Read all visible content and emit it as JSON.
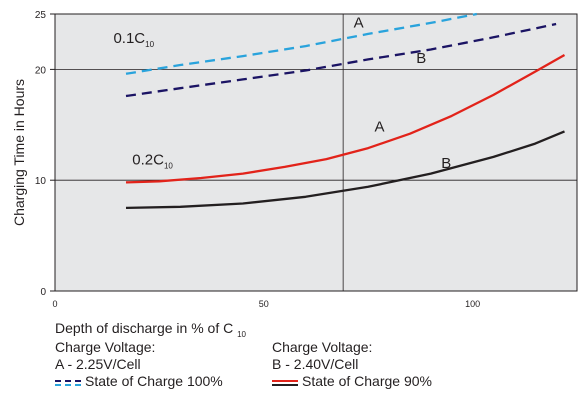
{
  "chart_data": {
    "type": "line",
    "title": "",
    "ylabel": "Charging Time in Hours",
    "xlabel": "Depth of discharge in % of C",
    "xlabel_sub": "10",
    "xlim": [
      0,
      125
    ],
    "ylim": [
      0,
      25
    ],
    "x_ticks": [
      0,
      50,
      100
    ],
    "y_ticks": [
      0,
      10,
      20,
      25
    ],
    "reference_lines": {
      "x": 69,
      "y": [
        10,
        20
      ]
    },
    "grid": false,
    "series": [
      {
        "group": "0.1C10",
        "curve": "A",
        "style": "dashed",
        "color": "#29a3dc",
        "x": [
          17,
          30,
          45,
          60,
          75,
          90,
          101
        ],
        "y": [
          19.6,
          20.4,
          21.2,
          22.1,
          23.2,
          24.2,
          25.0
        ]
      },
      {
        "group": "0.1C10",
        "curve": "B",
        "style": "dashed",
        "color": "#1b1464",
        "x": [
          17,
          30,
          45,
          60,
          75,
          90,
          105,
          120
        ],
        "y": [
          17.6,
          18.3,
          19.1,
          19.9,
          20.9,
          21.8,
          22.9,
          24.1
        ]
      },
      {
        "group": "0.2C10",
        "curve": "A",
        "style": "solid",
        "color": "#e2231a",
        "x": [
          17,
          25,
          35,
          45,
          55,
          65,
          75,
          85,
          95,
          105,
          115,
          122
        ],
        "y": [
          9.8,
          9.9,
          10.2,
          10.6,
          11.2,
          11.9,
          12.9,
          14.2,
          15.8,
          17.7,
          19.8,
          21.3
        ]
      },
      {
        "group": "0.2C10",
        "curve": "B",
        "style": "solid",
        "color": "#231f20",
        "x": [
          17,
          30,
          45,
          60,
          75,
          90,
          105,
          115,
          122
        ],
        "y": [
          7.5,
          7.6,
          7.9,
          8.5,
          9.4,
          10.6,
          12.1,
          13.3,
          14.4
        ]
      }
    ],
    "annotations": [
      {
        "text": "0.1C",
        "sub": "10",
        "x": 14,
        "y": 22.4
      },
      {
        "text": "A",
        "x": 71.5,
        "y": 23.8
      },
      {
        "text": "B",
        "x": 86.5,
        "y": 20.6
      },
      {
        "text": "0.2C",
        "sub": "10",
        "x": 18.5,
        "y": 11.4
      },
      {
        "text": "A",
        "x": 76.5,
        "y": 14.4
      },
      {
        "text": "B",
        "x": 92.5,
        "y": 11.1
      }
    ]
  },
  "legend": {
    "voltage_a_heading": "Charge Voltage:",
    "voltage_a": "A - 2.25V/Cell",
    "voltage_b_heading": "Charge Voltage:",
    "voltage_b": "B - 2.40V/Cell",
    "state_100": "State of Charge 100%",
    "state_90": "State of Charge 90%"
  }
}
